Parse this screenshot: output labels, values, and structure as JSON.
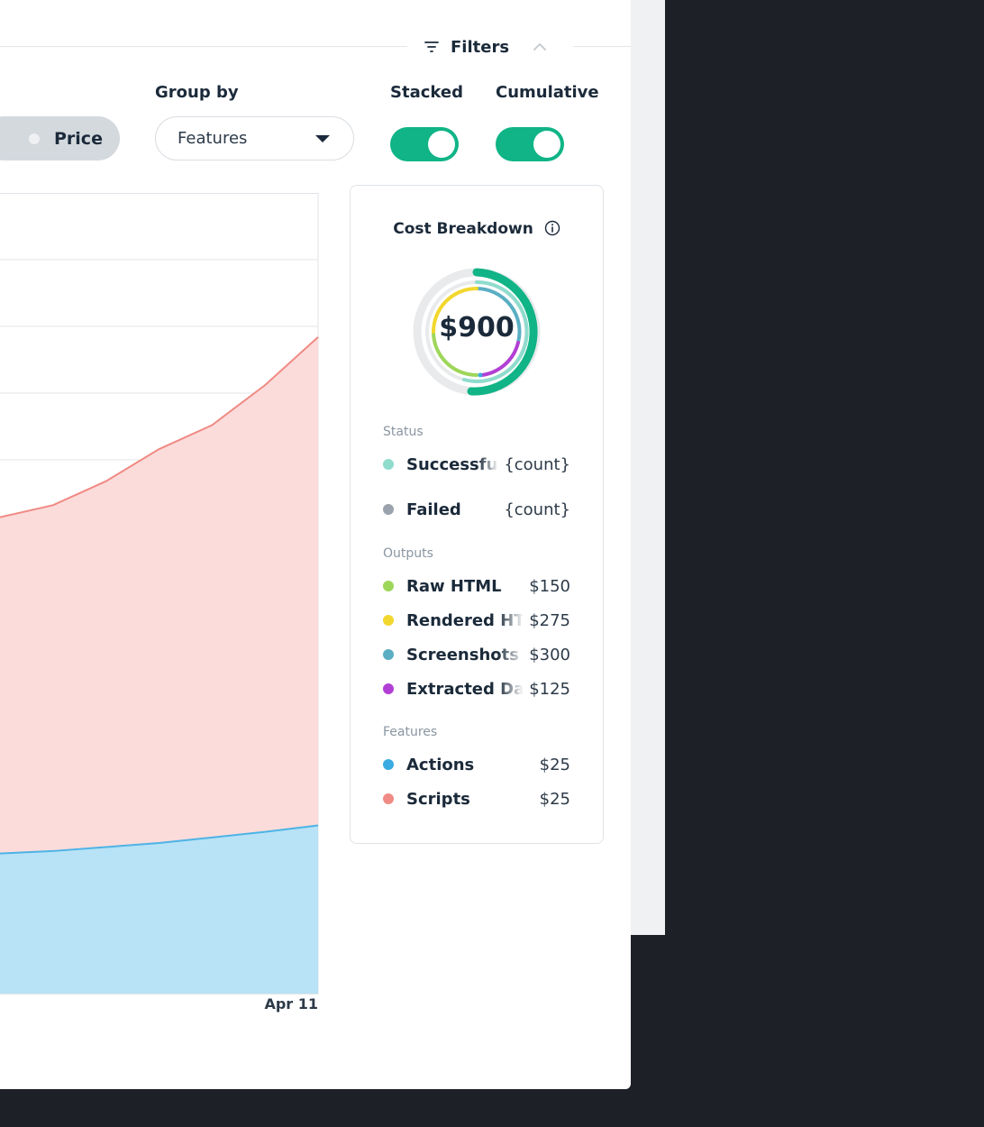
{
  "filters": {
    "label": "Filters"
  },
  "controls": {
    "group_by_label": "Group by",
    "group_by_value": "Features",
    "price_label": "Price",
    "stacked_label": "Stacked",
    "cumulative_label": "Cumulative",
    "stacked_on": true,
    "cumulative_on": true
  },
  "chart_data": {
    "type": "area",
    "stacked": true,
    "x_tick_labels": [
      "Apr 11"
    ],
    "series": [
      {
        "color": "#b8e2f5",
        "line_color": "#4db3e6",
        "values": [
          0.175,
          0.178,
          0.183,
          0.188,
          0.195,
          0.202,
          0.21
        ]
      },
      {
        "color": "#fbdcdb",
        "line_color": "#f08a84",
        "values": [
          0.595,
          0.61,
          0.64,
          0.68,
          0.71,
          0.76,
          0.82
        ]
      }
    ],
    "grid": true
  },
  "breakdown": {
    "title": "Cost Breakdown",
    "total": "$900",
    "status_label": "Status",
    "status": [
      {
        "name": "Successful",
        "value": "{count}",
        "color": "#8fdccd"
      },
      {
        "name": "Failed",
        "value": "{count}",
        "color": "#9aa3ad"
      }
    ],
    "outputs_label": "Outputs",
    "outputs": [
      {
        "name": "Raw HTML",
        "value": "$150",
        "color": "#9ed65a"
      },
      {
        "name": "Rendered HTML",
        "value": "$275",
        "color": "#f2d72e"
      },
      {
        "name": "Screenshots",
        "value": "$300",
        "color": "#5aaec3"
      },
      {
        "name": "Extracted Data",
        "value": "$125",
        "color": "#b23fd4"
      }
    ],
    "features_label": "Features",
    "features": [
      {
        "name": "Actions",
        "value": "$25",
        "color": "#3aabe0"
      },
      {
        "name": "Scripts",
        "value": "$25",
        "color": "#f08a84"
      }
    ]
  }
}
